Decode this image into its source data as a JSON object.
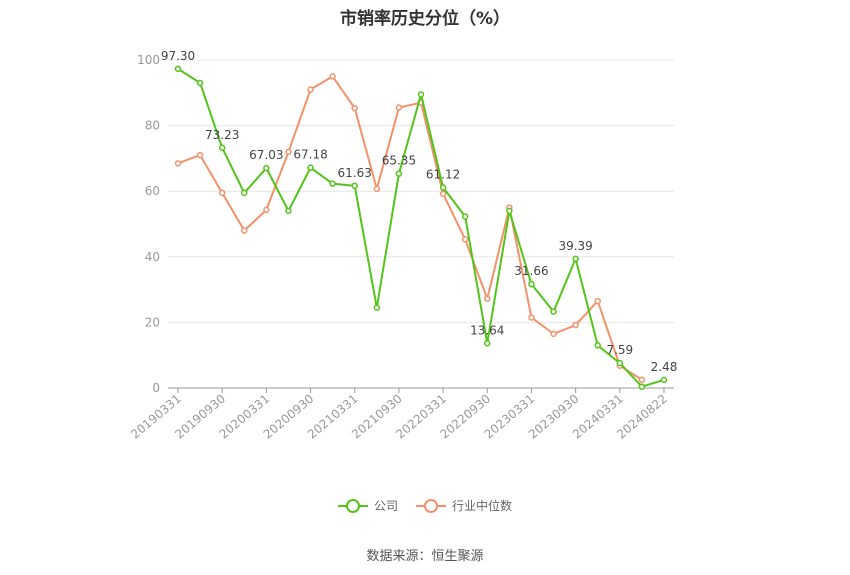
{
  "title": "市销率历史分位（%）",
  "source": "数据来源：恒生聚源",
  "colors": {
    "company": "#52c41a",
    "industry": "#f4916a",
    "grid": "#e6e6e6",
    "axis": "#999999"
  },
  "chart_data": {
    "type": "line",
    "title": "市销率历史分位（%）",
    "ylim": [
      0,
      100
    ],
    "yticks": [
      0,
      20,
      40,
      60,
      80,
      100
    ],
    "grid": true,
    "legend_position": "bottom-center",
    "x": [
      "20190331",
      "20190630",
      "20190930",
      "20191231",
      "20200331",
      "20200630",
      "20200930",
      "20201231",
      "20210331",
      "20210630",
      "20210930",
      "20211231",
      "20220331",
      "20220630",
      "20220930",
      "20221231",
      "20230331",
      "20230630",
      "20230930",
      "20231231",
      "20240331",
      "20240630",
      "20240822"
    ],
    "xtick_labels": [
      "20190331",
      "20190930",
      "20200331",
      "20200930",
      "20210331",
      "20210930",
      "20220331",
      "20220930",
      "20230331",
      "20230930",
      "20240331",
      "20240822"
    ],
    "series": [
      {
        "name": "公司",
        "color": "#52c41a",
        "values": [
          97.3,
          93.0,
          73.23,
          59.5,
          67.03,
          54.0,
          67.18,
          62.3,
          61.63,
          24.5,
          65.35,
          89.5,
          61.12,
          52.3,
          13.64,
          54.0,
          31.66,
          23.3,
          39.39,
          13.0,
          7.59,
          0.4,
          2.48
        ],
        "labels": {
          "0": "97.30",
          "2": "73.23",
          "4": "67.03",
          "6": "67.18",
          "8": "61.63",
          "10": "65.35",
          "12": "61.12",
          "14": "13.64",
          "16": "31.66",
          "18": "39.39",
          "20": "7.59",
          "22": "2.48"
        }
      },
      {
        "name": "行业中位数",
        "color": "#f4916a",
        "values": [
          68.5,
          71.0,
          59.5,
          48.0,
          54.3,
          72.0,
          91.0,
          95.0,
          85.3,
          60.7,
          85.5,
          87.0,
          59.2,
          45.3,
          27.2,
          55.0,
          21.5,
          16.5,
          19.2,
          26.5,
          6.8,
          2.5,
          null
        ]
      }
    ]
  }
}
